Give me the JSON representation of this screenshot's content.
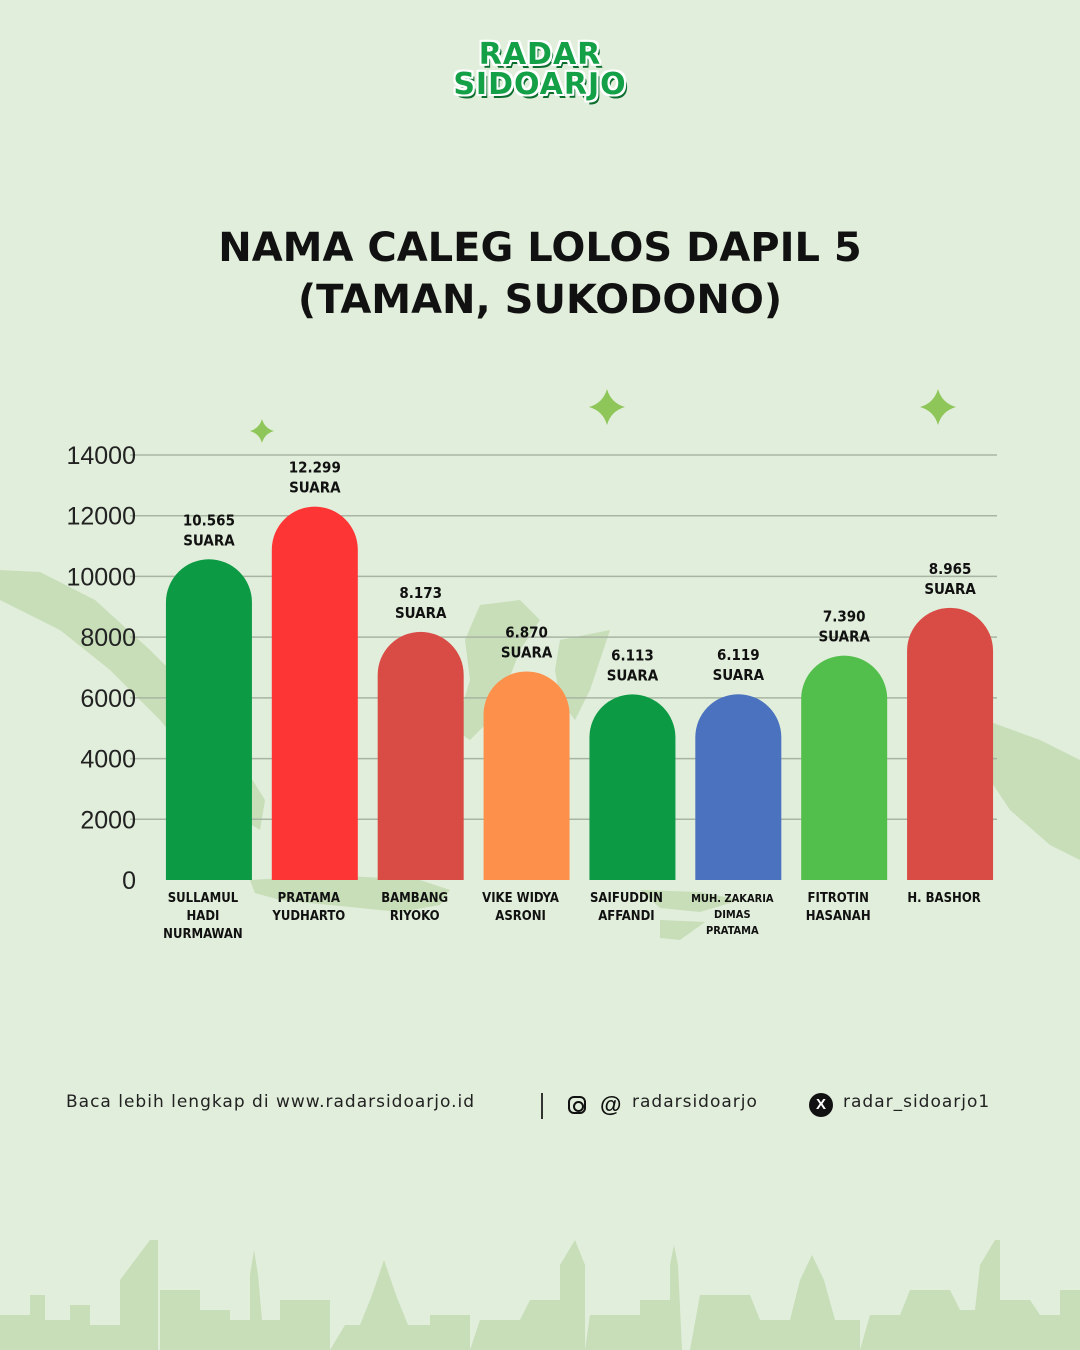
{
  "logo": {
    "line1": "RADAR",
    "line2": "SIDOARJO"
  },
  "title": {
    "line1": "NAMA CALEG LOLOS DAPIL 5",
    "line2": "(TAMAN, SUKODONO)"
  },
  "chart_data": {
    "type": "bar",
    "categories": [
      [
        "SULLAMUL",
        "HADI",
        "NURMAWAN"
      ],
      [
        "PRATAMA",
        "YUDHARTO"
      ],
      [
        "BAMBANG",
        "RIYOKO"
      ],
      [
        "VIKE WIDYA",
        "ASRONI"
      ],
      [
        "SAIFUDDIN",
        "AFFANDI"
      ],
      [
        "MUH. ZAKARIA",
        "DIMAS",
        "PRATAMA"
      ],
      [
        "FITROTIN",
        "HASANAH"
      ],
      [
        "H. BASHOR"
      ]
    ],
    "values": [
      10565,
      12299,
      8173,
      6870,
      6113,
      6119,
      7390,
      8965
    ],
    "value_labels": [
      "10.565",
      "12.299",
      "8.173",
      "6.870",
      "6.113",
      "6.119",
      "7.390",
      "8.965"
    ],
    "value_unit": "SUARA",
    "colors": [
      "#0d9a44",
      "#fe3535",
      "#d94c46",
      "#fd914b",
      "#0d9a44",
      "#4a72bf",
      "#52be4b",
      "#d94c46"
    ],
    "ylim": [
      0,
      14000
    ],
    "yticks": [
      0,
      2000,
      4000,
      6000,
      8000,
      10000,
      12000,
      14000
    ],
    "grid": true,
    "title": "NAMA CALEG LOLOS DAPIL 5 (TAMAN, SUKODONO)",
    "xlabel": "",
    "ylabel": ""
  },
  "footer": {
    "read_more": "Baca lebih lengkap di www.radarsidoarjo.id",
    "social_handle": "radarsidoarjo",
    "x_handle": "radar_sidoarjo1"
  },
  "icons": [
    "instagram-icon",
    "threads-icon",
    "x-icon",
    "sparkle-icon"
  ],
  "colors": {
    "background": "#e1eedb",
    "accent": "#14a046",
    "gridline": "#a9b5a3"
  }
}
